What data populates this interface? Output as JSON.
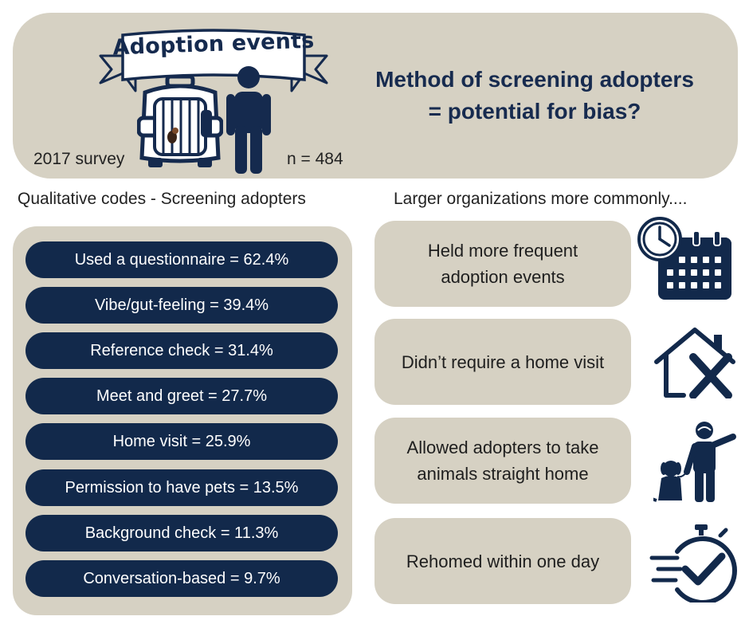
{
  "header": {
    "banner": "Adoption events",
    "survey": "2017 survey",
    "sample": "n = 484",
    "title_line1": "Method of screening adopters",
    "title_line2": "= potential for bias?"
  },
  "left": {
    "heading": "Qualitative codes - Screening adopters",
    "codes": [
      "Used a questionnaire = 62.4%",
      "Vibe/gut-feeling = 39.4%",
      "Reference check = 31.4%",
      "Meet and greet = 27.7%",
      "Home visit = 25.9%",
      "Permission to have pets = 13.5%",
      "Background check = 11.3%",
      "Conversation-based = 9.7%"
    ]
  },
  "right": {
    "heading": "Larger organizations more commonly....",
    "findings": [
      {
        "line1": "Held more frequent",
        "line2": "adoption events",
        "icon": "clock-calendar-icon"
      },
      {
        "line1": "Didn’t require a home visit",
        "line2": "",
        "icon": "house-cross-icon"
      },
      {
        "line1": "Allowed adopters to take",
        "line2": "animals straight home",
        "icon": "person-with-dog-icon"
      },
      {
        "line1": "Rehomed within one day",
        "line2": "",
        "icon": "stopwatch-check-icon"
      }
    ]
  },
  "colors": {
    "navy": "#12294b",
    "beige": "#d6d1c3",
    "white": "#ffffff"
  }
}
